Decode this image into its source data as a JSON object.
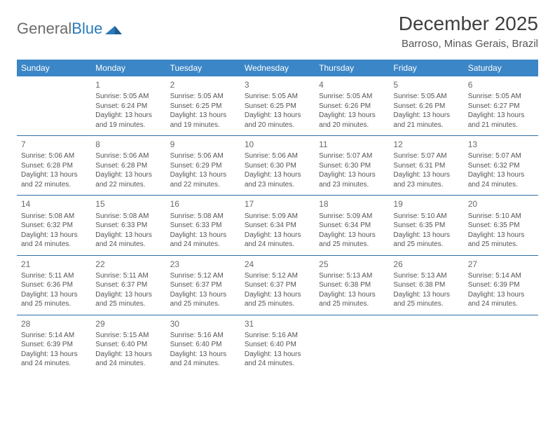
{
  "logo": {
    "general": "General",
    "blue": "Blue"
  },
  "title": "December 2025",
  "location": "Barroso, Minas Gerais, Brazil",
  "colors": {
    "header_bg": "#3b86c6",
    "header_text": "#ffffff",
    "divider": "#2d6fa8",
    "body_text": "#555555",
    "daynum": "#6a6a6a",
    "title_text": "#404040",
    "logo_gray": "#6b6b6b",
    "logo_blue": "#2a7ab9",
    "background": "#ffffff"
  },
  "typography": {
    "title_fontsize": 28,
    "location_fontsize": 15,
    "header_fontsize": 12,
    "daynum_fontsize": 12,
    "cell_fontsize": 10
  },
  "dayNames": [
    "Sunday",
    "Monday",
    "Tuesday",
    "Wednesday",
    "Thursday",
    "Friday",
    "Saturday"
  ],
  "leadingBlanks": 1,
  "days": [
    {
      "n": 1,
      "sr": "5:05 AM",
      "ss": "6:24 PM",
      "dl": "13 hours and 19 minutes."
    },
    {
      "n": 2,
      "sr": "5:05 AM",
      "ss": "6:25 PM",
      "dl": "13 hours and 19 minutes."
    },
    {
      "n": 3,
      "sr": "5:05 AM",
      "ss": "6:25 PM",
      "dl": "13 hours and 20 minutes."
    },
    {
      "n": 4,
      "sr": "5:05 AM",
      "ss": "6:26 PM",
      "dl": "13 hours and 20 minutes."
    },
    {
      "n": 5,
      "sr": "5:05 AM",
      "ss": "6:26 PM",
      "dl": "13 hours and 21 minutes."
    },
    {
      "n": 6,
      "sr": "5:05 AM",
      "ss": "6:27 PM",
      "dl": "13 hours and 21 minutes."
    },
    {
      "n": 7,
      "sr": "5:06 AM",
      "ss": "6:28 PM",
      "dl": "13 hours and 22 minutes."
    },
    {
      "n": 8,
      "sr": "5:06 AM",
      "ss": "6:28 PM",
      "dl": "13 hours and 22 minutes."
    },
    {
      "n": 9,
      "sr": "5:06 AM",
      "ss": "6:29 PM",
      "dl": "13 hours and 22 minutes."
    },
    {
      "n": 10,
      "sr": "5:06 AM",
      "ss": "6:30 PM",
      "dl": "13 hours and 23 minutes."
    },
    {
      "n": 11,
      "sr": "5:07 AM",
      "ss": "6:30 PM",
      "dl": "13 hours and 23 minutes."
    },
    {
      "n": 12,
      "sr": "5:07 AM",
      "ss": "6:31 PM",
      "dl": "13 hours and 23 minutes."
    },
    {
      "n": 13,
      "sr": "5:07 AM",
      "ss": "6:32 PM",
      "dl": "13 hours and 24 minutes."
    },
    {
      "n": 14,
      "sr": "5:08 AM",
      "ss": "6:32 PM",
      "dl": "13 hours and 24 minutes."
    },
    {
      "n": 15,
      "sr": "5:08 AM",
      "ss": "6:33 PM",
      "dl": "13 hours and 24 minutes."
    },
    {
      "n": 16,
      "sr": "5:08 AM",
      "ss": "6:33 PM",
      "dl": "13 hours and 24 minutes."
    },
    {
      "n": 17,
      "sr": "5:09 AM",
      "ss": "6:34 PM",
      "dl": "13 hours and 24 minutes."
    },
    {
      "n": 18,
      "sr": "5:09 AM",
      "ss": "6:34 PM",
      "dl": "13 hours and 25 minutes."
    },
    {
      "n": 19,
      "sr": "5:10 AM",
      "ss": "6:35 PM",
      "dl": "13 hours and 25 minutes."
    },
    {
      "n": 20,
      "sr": "5:10 AM",
      "ss": "6:35 PM",
      "dl": "13 hours and 25 minutes."
    },
    {
      "n": 21,
      "sr": "5:11 AM",
      "ss": "6:36 PM",
      "dl": "13 hours and 25 minutes."
    },
    {
      "n": 22,
      "sr": "5:11 AM",
      "ss": "6:37 PM",
      "dl": "13 hours and 25 minutes."
    },
    {
      "n": 23,
      "sr": "5:12 AM",
      "ss": "6:37 PM",
      "dl": "13 hours and 25 minutes."
    },
    {
      "n": 24,
      "sr": "5:12 AM",
      "ss": "6:37 PM",
      "dl": "13 hours and 25 minutes."
    },
    {
      "n": 25,
      "sr": "5:13 AM",
      "ss": "6:38 PM",
      "dl": "13 hours and 25 minutes."
    },
    {
      "n": 26,
      "sr": "5:13 AM",
      "ss": "6:38 PM",
      "dl": "13 hours and 25 minutes."
    },
    {
      "n": 27,
      "sr": "5:14 AM",
      "ss": "6:39 PM",
      "dl": "13 hours and 24 minutes."
    },
    {
      "n": 28,
      "sr": "5:14 AM",
      "ss": "6:39 PM",
      "dl": "13 hours and 24 minutes."
    },
    {
      "n": 29,
      "sr": "5:15 AM",
      "ss": "6:40 PM",
      "dl": "13 hours and 24 minutes."
    },
    {
      "n": 30,
      "sr": "5:16 AM",
      "ss": "6:40 PM",
      "dl": "13 hours and 24 minutes."
    },
    {
      "n": 31,
      "sr": "5:16 AM",
      "ss": "6:40 PM",
      "dl": "13 hours and 24 minutes."
    }
  ],
  "labels": {
    "sunrise": "Sunrise:",
    "sunset": "Sunset:",
    "daylight": "Daylight:"
  }
}
